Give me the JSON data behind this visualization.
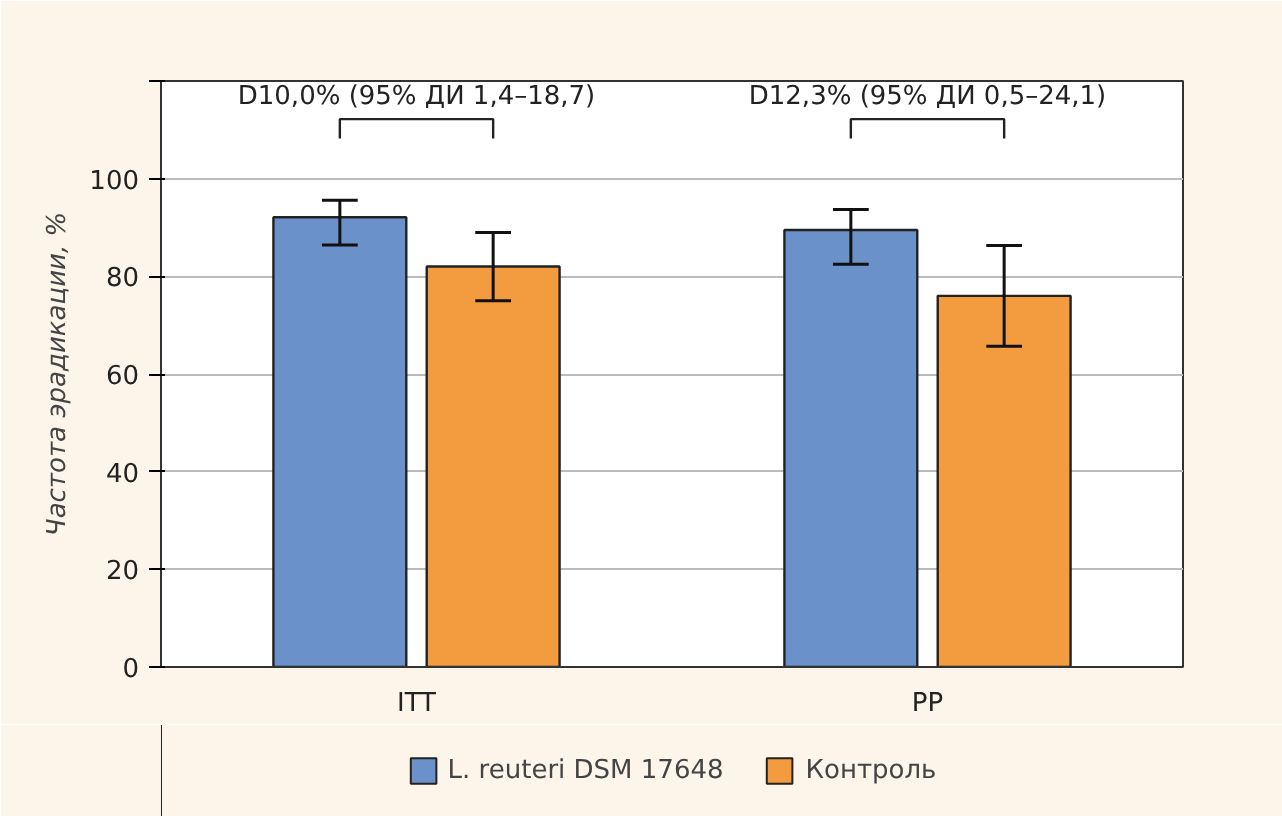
{
  "chart_data": {
    "type": "bar",
    "ylabel": "Частота эрадикации, %",
    "categories": [
      "ITT",
      "PP"
    ],
    "series": [
      {
        "name": "L. reuteri DSM 17648",
        "color": "#6a91c9",
        "values": [
          92.1,
          89.5
        ],
        "errors": [
          [
            86.4,
            95.6
          ],
          [
            82.5,
            93.7
          ]
        ]
      },
      {
        "name": "Контроль",
        "color": "#f29b3f",
        "values": [
          82.0,
          76.0
        ],
        "errors": [
          [
            75.0,
            89.0
          ],
          [
            65.7,
            86.3
          ]
        ]
      }
    ],
    "ylim": [
      0,
      120
    ],
    "yticks": [
      {
        "value": 0,
        "label": "0"
      },
      {
        "value": 20,
        "label": "20"
      },
      {
        "value": 40,
        "label": "40"
      },
      {
        "value": 60,
        "label": "60"
      },
      {
        "value": 80,
        "label": "80"
      },
      {
        "value": 100,
        "label": "100"
      },
      {
        "value": 120,
        "label": null
      }
    ],
    "annotations": [
      "D10,0% (95% ДИ 1,4–18,7)",
      "D12,3% (95% ДИ 0,5–24,1)"
    ],
    "grid": "y",
    "legend": "bottom"
  }
}
